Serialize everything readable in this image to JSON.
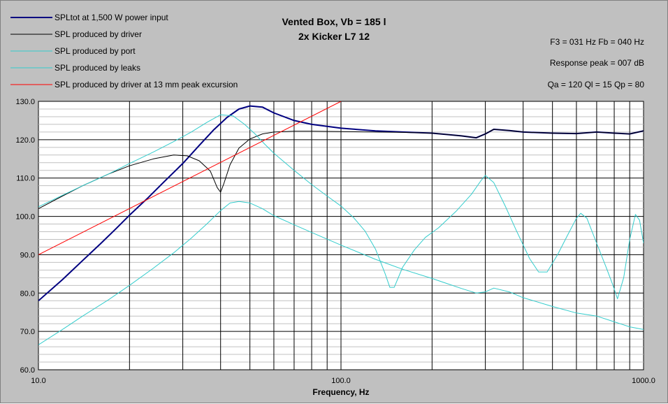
{
  "chart_data": {
    "type": "line",
    "title": "Vented Box, Vb = 185 l",
    "subtitle": "2x Kicker L7 12",
    "xlabel": "Frequency, Hz",
    "ylabel": "",
    "x_scale": "log",
    "xlim": [
      10,
      1000
    ],
    "ylim": [
      60,
      130
    ],
    "grid": true,
    "legend_position": "top-left",
    "x_ticks": [
      "10.0",
      "100.0",
      "1000.0"
    ],
    "y_ticks": [
      "60.0",
      "70.0",
      "80.0",
      "90.0",
      "100.0",
      "110.0",
      "120.0",
      "130.0"
    ],
    "annotations": [
      "F3 = 031 Hz  Fb = 040 Hz",
      "Response peak = 007 dB",
      "Qa = 120  Ql = 15  Qp = 80"
    ],
    "series": [
      {
        "name": "SPLtot at 1,500 W power input",
        "color": "#000080",
        "width": 2,
        "x": [
          10,
          12,
          14,
          16,
          18,
          20,
          23,
          26,
          30,
          34,
          38,
          42,
          46,
          50,
          55,
          60,
          70,
          80,
          100,
          130,
          160,
          200,
          250,
          280,
          300,
          320,
          360,
          400,
          500,
          600,
          700,
          800,
          900,
          1000
        ],
        "y": [
          78,
          83.5,
          88.5,
          92.8,
          96.7,
          100.3,
          104.8,
          109,
          113.8,
          118.5,
          122.6,
          125.8,
          128,
          128.8,
          128.5,
          127,
          125,
          124,
          123,
          122.3,
          122,
          121.7,
          121,
          120.5,
          121.5,
          122.7,
          122.4,
          122,
          121.7,
          121.6,
          122,
          121.7,
          121.5,
          122.3
        ]
      },
      {
        "name": "SPL produced by driver",
        "color": "#000000",
        "width": 1,
        "x": [
          10,
          12,
          14,
          17,
          20,
          24,
          28,
          31,
          34,
          37,
          39,
          40,
          41,
          43,
          46,
          50,
          55,
          60,
          70,
          80,
          100,
          130,
          160,
          200,
          250,
          280,
          300,
          320,
          360,
          400,
          500,
          600,
          700,
          800,
          900,
          1000
        ],
        "y": [
          102,
          105.3,
          108,
          111,
          113.2,
          115,
          116,
          115.8,
          114.5,
          111.8,
          107.5,
          106.3,
          108.5,
          113.5,
          117.8,
          120.2,
          121.5,
          122,
          122.2,
          122.2,
          122.1,
          122,
          121.9,
          121.7,
          121,
          120.5,
          121.5,
          122.7,
          122.4,
          122,
          121.7,
          121.6,
          122,
          121.7,
          121.5,
          122.3
        ]
      },
      {
        "name": "SPL produced by port",
        "color": "#33cccc",
        "width": 1,
        "x": [
          10,
          12,
          14,
          17,
          20,
          24,
          28,
          32,
          36,
          40,
          44,
          48,
          52,
          56,
          60,
          70,
          80,
          90,
          100,
          110,
          120,
          130,
          140,
          145,
          150,
          160,
          175,
          190,
          210,
          240,
          270,
          290,
          300,
          320,
          350,
          380,
          420,
          450,
          480,
          520,
          560,
          600,
          620,
          650,
          700,
          750,
          790,
          820,
          860,
          900,
          940,
          970,
          1000
        ],
        "y": [
          102.5,
          105.5,
          108,
          111,
          113.8,
          116.8,
          119.5,
          122,
          124.5,
          126.5,
          126.2,
          124,
          121.5,
          118.8,
          116.5,
          112,
          108.3,
          105.3,
          102.7,
          99.7,
          96.2,
          91.5,
          85,
          81.5,
          81.5,
          86.8,
          91.3,
          94.5,
          97,
          101.3,
          105.8,
          109.3,
          110.7,
          108.8,
          102.5,
          96.3,
          89,
          85.5,
          85.5,
          90,
          95,
          99.5,
          100.8,
          99.5,
          93,
          87,
          82.3,
          78.5,
          84,
          94,
          100.5,
          99,
          93
        ]
      },
      {
        "name": "SPL produced by leaks",
        "color": "#33cccc",
        "width": 1,
        "x": [
          10,
          12,
          14,
          17,
          20,
          24,
          28,
          32,
          36,
          40,
          43,
          46,
          50,
          55,
          60,
          70,
          80,
          100,
          130,
          160,
          200,
          250,
          280,
          300,
          320,
          360,
          400,
          500,
          600,
          700,
          800,
          900,
          1000
        ],
        "y": [
          66.5,
          70.5,
          74,
          78.2,
          82,
          86.5,
          90.5,
          94.3,
          98,
          101.5,
          103.5,
          103.9,
          103.5,
          102,
          100.2,
          97.8,
          95.8,
          92.5,
          88.8,
          86.2,
          83.8,
          81.2,
          80,
          80.3,
          81.3,
          80.3,
          78.8,
          76.5,
          74.8,
          74,
          72.5,
          71.2,
          70.5
        ]
      },
      {
        "name": "SPL produced by driver at 13 mm peak excursion",
        "color": "#ff0000",
        "width": 1,
        "x": [
          10,
          100
        ],
        "y": [
          90,
          130
        ]
      }
    ]
  }
}
